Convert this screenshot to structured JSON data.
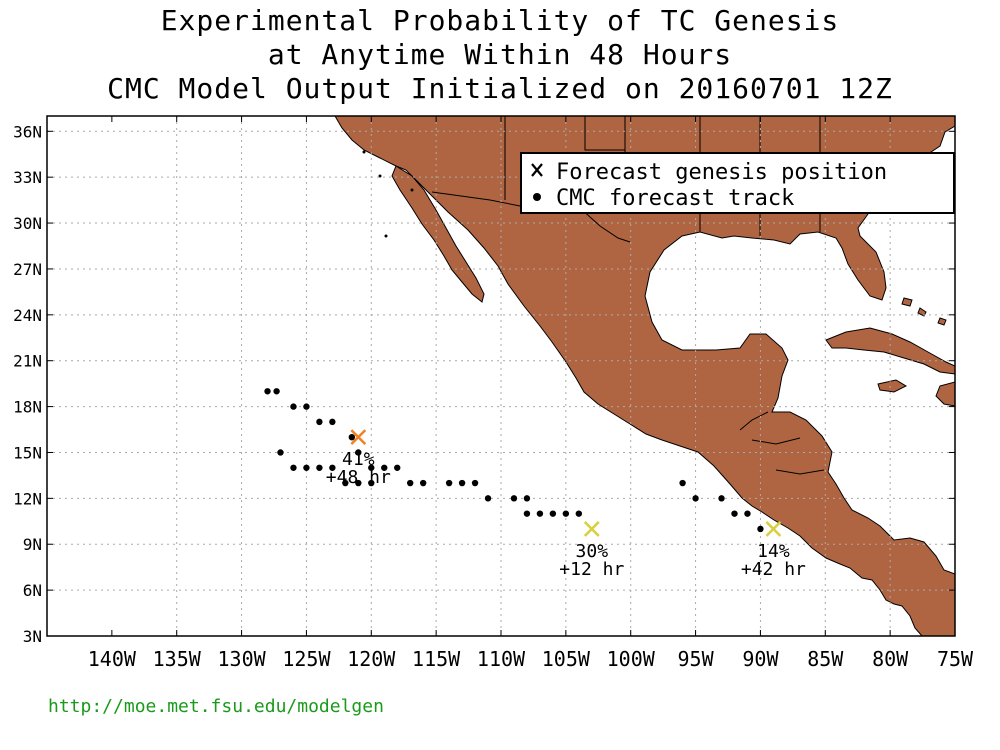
{
  "title_lines": [
    "Experimental Probability of TC Genesis",
    "at Anytime Within 48 Hours",
    "CMC Model Output Initialized on 20160701 12Z"
  ],
  "legend": {
    "genesis_label": "Forecast genesis position",
    "track_label": "CMC forecast track"
  },
  "footer_url": "http://moe.met.fsu.edu/modelgen",
  "colors": {
    "land": "#b06542",
    "genesis_high": "#f08020",
    "genesis_low": "#d8d040",
    "track": "#000000",
    "footer": "#1a9a1a"
  },
  "map": {
    "lon_range": [
      -145,
      -75
    ],
    "lat_range": [
      3,
      37
    ],
    "lon_ticks": [
      -140,
      -135,
      -130,
      -125,
      -120,
      -115,
      -110,
      -105,
      -100,
      -95,
      -90,
      -85,
      -80,
      -75
    ],
    "lon_tick_labels": [
      "140W",
      "135W",
      "130W",
      "125W",
      "120W",
      "115W",
      "110W",
      "105W",
      "100W",
      "95W",
      "90W",
      "85W",
      "80W",
      "75W"
    ],
    "lat_ticks": [
      3,
      6,
      9,
      12,
      15,
      18,
      21,
      24,
      27,
      30,
      33,
      36
    ],
    "lat_tick_labels": [
      "3N",
      "6N",
      "9N",
      "12N",
      "15N",
      "18N",
      "21N",
      "24N",
      "27N",
      "30N",
      "33N",
      "36N"
    ],
    "grid": true
  },
  "genesis_points": [
    {
      "lon": -121,
      "lat": 16,
      "prob": "41%",
      "lead": "+48 hr",
      "color": "#f08020"
    },
    {
      "lon": -103,
      "lat": 10,
      "prob": "30%",
      "lead": "+12 hr",
      "color": "#d8d040"
    },
    {
      "lon": -89,
      "lat": 10,
      "prob": "14%",
      "lead": "+42 hr",
      "color": "#d8d040"
    }
  ],
  "tracks": [
    [
      [
        -128,
        19
      ],
      [
        -127.3,
        19
      ],
      [
        -126,
        18
      ],
      [
        -125,
        18
      ],
      [
        -124,
        17
      ],
      [
        -123,
        17
      ],
      [
        -121.5,
        16
      ],
      [
        -121,
        15
      ],
      [
        -120,
        14
      ],
      [
        -119,
        14
      ],
      [
        -118,
        14
      ],
      [
        -117,
        13
      ],
      [
        -116,
        13
      ],
      [
        -114,
        13
      ],
      [
        -113,
        13
      ],
      [
        -112,
        13
      ],
      [
        -111,
        12
      ],
      [
        -109,
        12
      ],
      [
        -108,
        12
      ],
      [
        -108,
        11
      ],
      [
        -107,
        11
      ],
      [
        -106,
        11
      ],
      [
        -105,
        11
      ],
      [
        -104,
        11
      ]
    ],
    [
      [
        -127,
        15
      ],
      [
        -126,
        14
      ],
      [
        -125,
        14
      ],
      [
        -124,
        14
      ],
      [
        -123,
        14
      ],
      [
        -122,
        13
      ],
      [
        -121,
        13
      ],
      [
        -120,
        13
      ]
    ],
    [
      [
        -96,
        13
      ],
      [
        -95,
        12
      ],
      [
        -93,
        12
      ],
      [
        -92,
        11
      ],
      [
        -91,
        11
      ],
      [
        -90,
        10
      ]
    ]
  ]
}
